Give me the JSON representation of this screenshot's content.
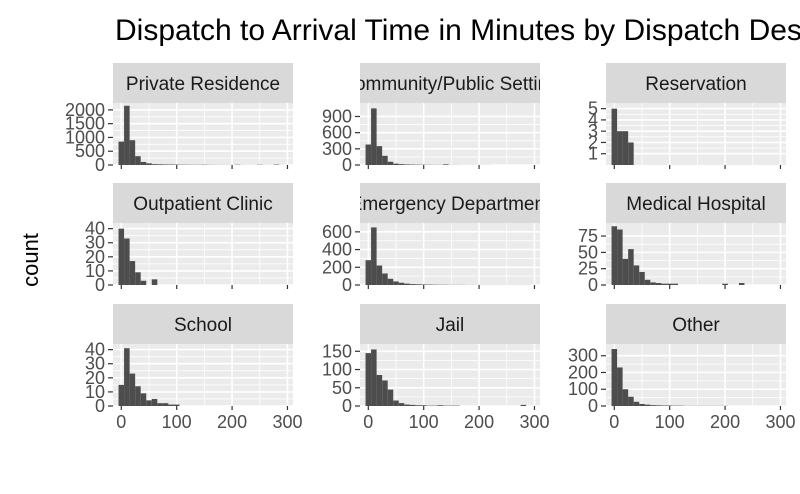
{
  "chart_data": {
    "type": "bar",
    "title": "Dispatch to Arrival Time in Minutes by Dispatch Destination",
    "ylabel": "count",
    "xlabel": "",
    "x_ticks": [
      0,
      100,
      200,
      300
    ],
    "xlim": [
      -15,
      310
    ],
    "bin_width": 10,
    "bin_starts": [
      0,
      10,
      20,
      30,
      40,
      50,
      60,
      70,
      80,
      90,
      100,
      110,
      120,
      130,
      140,
      150,
      160,
      170,
      180,
      190,
      200,
      210,
      220,
      230,
      240,
      250,
      260,
      270,
      280,
      290
    ],
    "panels": [
      {
        "label": "Private Residence",
        "ylim": [
          0,
          2250
        ],
        "y_ticks": [
          0,
          500,
          1000,
          1500,
          2000
        ],
        "y_tick_labels": [
          "0",
          "500",
          "1000",
          "1500",
          "2000"
        ],
        "x_tick_labels": [],
        "counts": [
          850,
          2150,
          900,
          320,
          110,
          60,
          30,
          25,
          20,
          18,
          15,
          12,
          10,
          9,
          8,
          12,
          6,
          5,
          4,
          4,
          3,
          10,
          3,
          2,
          2,
          10,
          2,
          2,
          15,
          2
        ]
      },
      {
        "label": "Community/Public Setting",
        "ylim": [
          0,
          1150
        ],
        "y_ticks": [
          0,
          300,
          600,
          900
        ],
        "y_tick_labels": [
          "0",
          "300",
          "600",
          "900"
        ],
        "x_tick_labels": [],
        "counts": [
          380,
          1050,
          350,
          170,
          60,
          25,
          15,
          10,
          8,
          6,
          5,
          4,
          3,
          3,
          12,
          2,
          2,
          1,
          1,
          1,
          1,
          1,
          1,
          0,
          0,
          0,
          0,
          0,
          0,
          0
        ]
      },
      {
        "label": "Reservation",
        "ylim": [
          0,
          5.5
        ],
        "y_ticks": [
          1,
          2,
          3,
          4,
          5
        ],
        "y_tick_labels": [
          "1",
          "2",
          "3",
          "4",
          "5"
        ],
        "x_tick_labels": [],
        "counts": [
          5,
          3,
          3,
          2,
          0,
          0,
          0,
          0,
          0,
          0,
          0,
          0,
          0,
          0,
          0,
          0,
          0,
          0,
          0,
          0,
          0,
          0,
          0,
          0,
          0,
          0,
          0,
          0,
          0,
          0
        ]
      },
      {
        "label": "Outpatient Clinic",
        "ylim": [
          0,
          44
        ],
        "y_ticks": [
          0,
          10,
          20,
          30,
          40
        ],
        "y_tick_labels": [
          "0",
          "10",
          "20",
          "30",
          "40"
        ],
        "x_tick_labels": [],
        "counts": [
          40,
          33,
          17,
          9,
          3,
          0,
          4,
          0,
          0,
          0,
          0,
          0,
          0,
          0,
          0,
          0,
          0,
          0,
          0,
          0,
          0,
          0,
          0,
          0,
          0,
          0,
          0,
          0,
          0,
          0
        ]
      },
      {
        "label": "Emergency Department",
        "ylim": [
          0,
          700
        ],
        "y_ticks": [
          0,
          200,
          400,
          600
        ],
        "y_tick_labels": [
          "0",
          "200",
          "400",
          "600"
        ],
        "x_tick_labels": [],
        "counts": [
          280,
          650,
          220,
          130,
          70,
          40,
          25,
          15,
          10,
          8,
          6,
          5,
          4,
          3,
          3,
          2,
          2,
          2,
          1,
          1,
          1,
          1,
          1,
          1,
          1,
          1,
          1,
          1,
          1,
          1
        ]
      },
      {
        "label": "Medical Hospital",
        "ylim": [
          0,
          95
        ],
        "y_ticks": [
          0,
          25,
          50,
          75
        ],
        "y_tick_labels": [
          "0",
          "25",
          "50",
          "75"
        ],
        "x_tick_labels": [],
        "counts": [
          90,
          85,
          40,
          55,
          30,
          20,
          8,
          4,
          3,
          2,
          2,
          2,
          0,
          0,
          0,
          0,
          0,
          0,
          0,
          0,
          2,
          0,
          0,
          3,
          0,
          0,
          0,
          0,
          0,
          0
        ]
      },
      {
        "label": "School",
        "ylim": [
          0,
          44
        ],
        "y_ticks": [
          0,
          10,
          20,
          30,
          40
        ],
        "y_tick_labels": [
          "0",
          "10",
          "20",
          "30",
          "40"
        ],
        "x_tick_labels": [
          "0",
          "100",
          "200",
          "300"
        ],
        "counts": [
          15,
          41,
          23,
          14,
          9,
          4,
          5,
          2,
          2,
          1,
          1,
          0,
          0,
          0,
          0,
          0,
          0,
          0,
          0,
          0,
          0,
          0,
          0,
          0,
          0,
          0,
          0,
          0,
          0,
          0
        ]
      },
      {
        "label": "Jail",
        "ylim": [
          0,
          170
        ],
        "y_ticks": [
          0,
          50,
          100,
          150
        ],
        "y_tick_labels": [
          "0",
          "50",
          "100",
          "150"
        ],
        "x_tick_labels": [
          "0",
          "100",
          "200",
          "300"
        ],
        "counts": [
          145,
          155,
          85,
          70,
          45,
          15,
          8,
          4,
          3,
          2,
          2,
          1,
          1,
          2,
          1,
          1,
          1,
          0,
          0,
          0,
          0,
          0,
          0,
          0,
          0,
          0,
          0,
          0,
          3,
          0
        ]
      },
      {
        "label": "Other",
        "ylim": [
          0,
          370
        ],
        "y_ticks": [
          0,
          100,
          200,
          300
        ],
        "y_tick_labels": [
          "0",
          "100",
          "200",
          "300"
        ],
        "x_tick_labels": [
          "0",
          "100",
          "200",
          "300"
        ],
        "counts": [
          340,
          230,
          100,
          55,
          25,
          12,
          8,
          5,
          4,
          3,
          3,
          2,
          2,
          1,
          1,
          1,
          1,
          1,
          1,
          1,
          1,
          0,
          0,
          0,
          0,
          0,
          0,
          0,
          0,
          0
        ]
      }
    ]
  }
}
